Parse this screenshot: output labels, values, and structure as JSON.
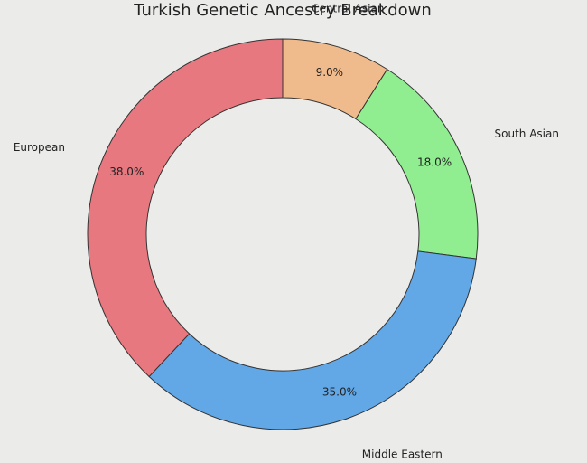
{
  "chart_data": {
    "type": "donut",
    "title": "Turkish Genetic Ancestry Breakdown",
    "categories": [
      "Central Asian",
      "South Asian",
      "Middle Eastern",
      "European"
    ],
    "values": [
      9,
      18,
      35,
      38
    ],
    "value_labels": [
      "9.0%",
      "18.0%",
      "35.0%",
      "38.0%"
    ],
    "colors": [
      "#f0bb8c",
      "#90ee90",
      "#62a7e6",
      "#e8787f"
    ]
  }
}
